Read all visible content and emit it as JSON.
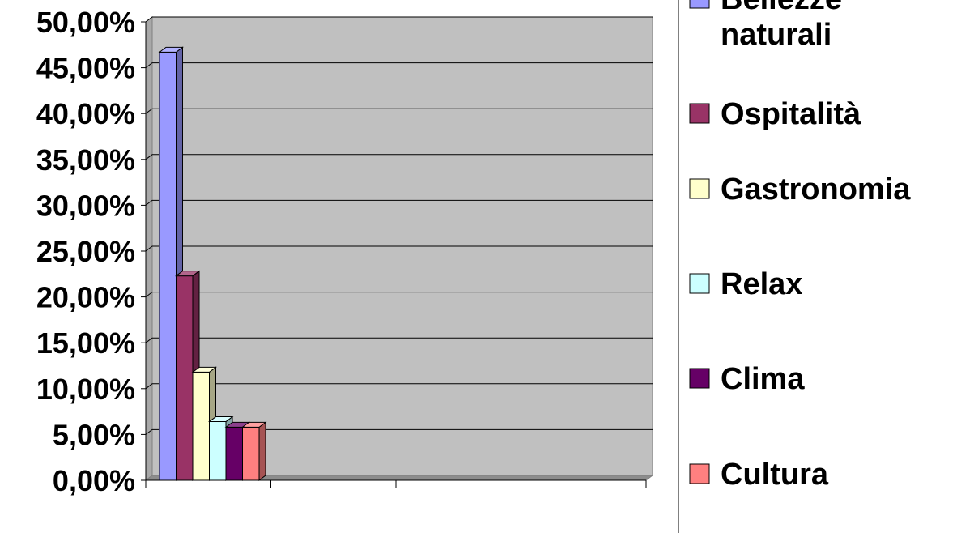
{
  "chart_data": {
    "type": "bar",
    "bar_style": "3d-clustered",
    "title": "",
    "xlabel": "",
    "ylabel": "",
    "ylim": [
      0,
      50
    ],
    "ytick_step": 5,
    "ytick_labels": [
      "0,00%",
      "5,00%",
      "10,00%",
      "15,00%",
      "20,00%",
      "25,00%",
      "30,00%",
      "35,00%",
      "40,00%",
      "45,00%",
      "50,00%"
    ],
    "grid": true,
    "legend_position": "right",
    "plot_background": "#c0c0c0",
    "series": [
      {
        "name": "Bellezze naturali",
        "values": [
          46.7
        ],
        "color": "#9999ff"
      },
      {
        "name": "Ospitalità",
        "values": [
          22.3
        ],
        "color": "#993366"
      },
      {
        "name": "Gastronomia",
        "values": [
          11.8
        ],
        "color": "#ffffcc"
      },
      {
        "name": "Relax",
        "values": [
          6.4
        ],
        "color": "#ccffff"
      },
      {
        "name": "Clima",
        "values": [
          5.8
        ],
        "color": "#660066"
      },
      {
        "name": "Cultura",
        "values": [
          5.8
        ],
        "color": "#ff8080"
      }
    ]
  }
}
